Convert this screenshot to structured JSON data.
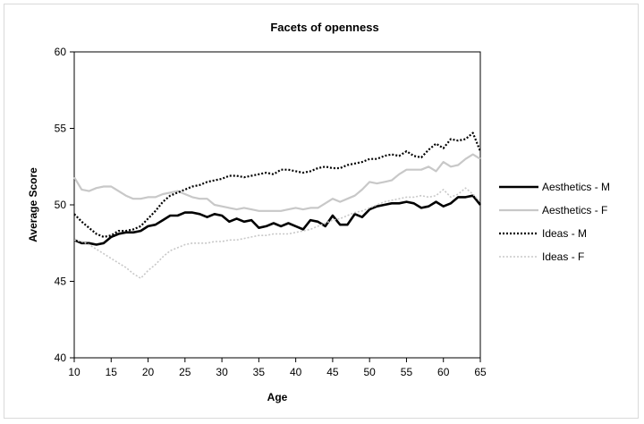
{
  "chart_data": {
    "type": "line",
    "title": "Facets of openness",
    "xlabel": "Age",
    "ylabel": "Average Score",
    "xlim": [
      10,
      65
    ],
    "ylim": [
      40,
      60
    ],
    "xticks": [
      "10",
      "15",
      "20",
      "25",
      "30",
      "35",
      "40",
      "45",
      "50",
      "55",
      "60",
      "65"
    ],
    "yticks": [
      "40",
      "45",
      "50",
      "55",
      "60"
    ],
    "grid": false,
    "legend_position": "right",
    "x": [
      10,
      11,
      12,
      13,
      14,
      15,
      16,
      17,
      18,
      19,
      20,
      21,
      22,
      23,
      24,
      25,
      26,
      27,
      28,
      29,
      30,
      31,
      32,
      33,
      34,
      35,
      36,
      37,
      38,
      39,
      40,
      41,
      42,
      43,
      44,
      45,
      46,
      47,
      48,
      49,
      50,
      51,
      52,
      53,
      54,
      55,
      56,
      57,
      58,
      59,
      60,
      61,
      62,
      63,
      64,
      65
    ],
    "series": [
      {
        "name": "Aesthetics - M",
        "color": "#000000",
        "style": "solid-thick",
        "values": [
          47.7,
          47.5,
          47.5,
          47.4,
          47.5,
          47.9,
          48.1,
          48.2,
          48.2,
          48.3,
          48.6,
          48.7,
          49.0,
          49.3,
          49.3,
          49.5,
          49.5,
          49.4,
          49.2,
          49.4,
          49.3,
          48.9,
          49.1,
          48.9,
          49.0,
          48.5,
          48.6,
          48.8,
          48.6,
          48.8,
          48.6,
          48.4,
          49.0,
          48.9,
          48.6,
          49.3,
          48.7,
          48.7,
          49.4,
          49.2,
          49.7,
          49.9,
          50.0,
          50.1,
          50.1,
          50.2,
          50.1,
          49.8,
          49.9,
          50.2,
          49.9,
          50.1,
          50.5,
          50.5,
          50.6,
          50.0
        ]
      },
      {
        "name": "Aesthetics - F",
        "color": "#c8c8c8",
        "style": "solid-light",
        "values": [
          51.8,
          51.0,
          50.9,
          51.1,
          51.2,
          51.2,
          50.9,
          50.6,
          50.4,
          50.4,
          50.5,
          50.5,
          50.7,
          50.8,
          50.9,
          50.7,
          50.5,
          50.4,
          50.4,
          50.0,
          49.9,
          49.8,
          49.7,
          49.8,
          49.7,
          49.6,
          49.6,
          49.6,
          49.6,
          49.7,
          49.8,
          49.7,
          49.8,
          49.8,
          50.1,
          50.4,
          50.2,
          50.4,
          50.6,
          51.0,
          51.5,
          51.4,
          51.5,
          51.6,
          52.0,
          52.3,
          52.3,
          52.3,
          52.5,
          52.2,
          52.8,
          52.5,
          52.6,
          53.0,
          53.3,
          53.0
        ]
      },
      {
        "name": "Ideas - M",
        "color": "#000000",
        "style": "dotted-thick",
        "values": [
          49.4,
          48.9,
          48.5,
          48.1,
          47.9,
          48.0,
          48.3,
          48.3,
          48.4,
          48.6,
          49.1,
          49.6,
          50.2,
          50.6,
          50.8,
          51.0,
          51.2,
          51.3,
          51.5,
          51.6,
          51.7,
          51.9,
          51.9,
          51.8,
          51.9,
          52.0,
          52.1,
          52.0,
          52.3,
          52.3,
          52.2,
          52.1,
          52.2,
          52.4,
          52.5,
          52.4,
          52.4,
          52.6,
          52.7,
          52.8,
          53.0,
          53.0,
          53.2,
          53.3,
          53.2,
          53.5,
          53.2,
          53.1,
          53.6,
          54.0,
          53.7,
          54.3,
          54.2,
          54.3,
          54.7,
          53.5
        ]
      },
      {
        "name": "Ideas - F",
        "color": "#c8c8c8",
        "style": "dotted-light",
        "values": [
          47.7,
          47.6,
          47.4,
          47.1,
          46.8,
          46.5,
          46.2,
          45.9,
          45.5,
          45.2,
          45.7,
          46.1,
          46.6,
          47.0,
          47.2,
          47.4,
          47.5,
          47.5,
          47.5,
          47.6,
          47.6,
          47.7,
          47.7,
          47.8,
          47.9,
          48.0,
          48.0,
          48.1,
          48.1,
          48.1,
          48.2,
          48.3,
          48.4,
          48.6,
          48.8,
          49.0,
          49.1,
          49.3,
          49.5,
          49.6,
          49.8,
          50.0,
          50.2,
          50.3,
          50.4,
          50.5,
          50.5,
          50.6,
          50.5,
          50.6,
          51.0,
          50.5,
          50.7,
          51.1,
          50.7,
          50.2
        ]
      }
    ]
  }
}
